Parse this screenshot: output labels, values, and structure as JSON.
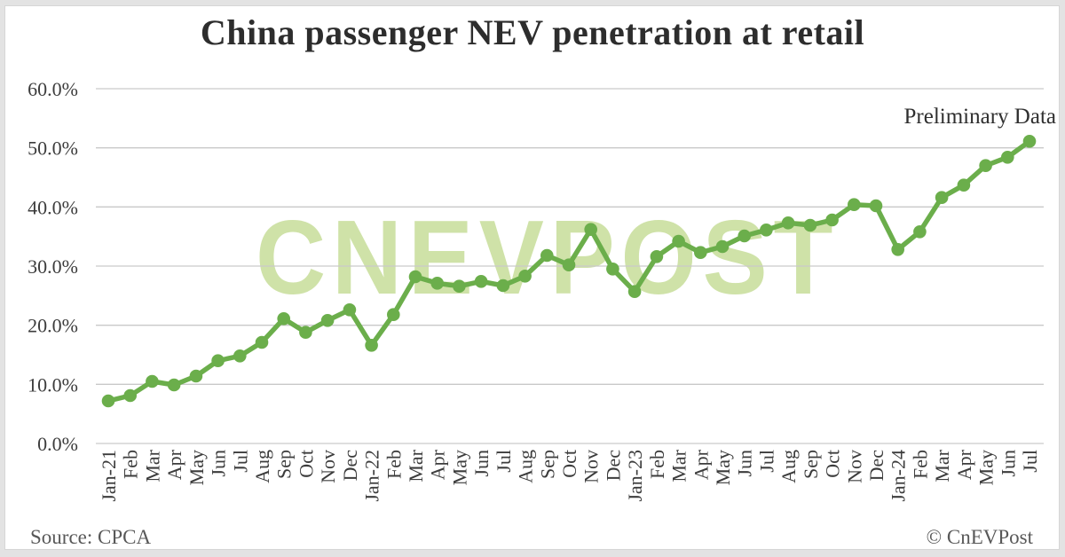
{
  "title": "China passenger NEV penetration at retail",
  "annotation": "Preliminary Data",
  "watermark": "CNEVPOST",
  "footer": {
    "source": "Source: CPCA",
    "copyright": "© CnEVPost"
  },
  "colors": {
    "line": "#6bae4b",
    "marker": "#6bae4b",
    "grid": "#c9c9c9",
    "axis_text": "#3c3c3c",
    "watermark": "#cfe2a8",
    "title_text": "#2d2d2d",
    "footer_text": "#585858",
    "card_bg": "#ffffff",
    "page_bg": "#e3e3e3"
  },
  "chart_data": {
    "type": "line",
    "title": "China passenger NEV penetration at retail",
    "xlabel": "",
    "ylabel": "",
    "ylim": [
      0,
      60
    ],
    "yticks": [
      0,
      10,
      20,
      30,
      40,
      50,
      60
    ],
    "ytick_labels": [
      "0.0%",
      "10.0%",
      "20.0%",
      "30.0%",
      "40.0%",
      "50.0%",
      "60.0%"
    ],
    "grid": "horizontal",
    "legend": "none",
    "categories": [
      "Jan-21",
      "Feb",
      "Mar",
      "Apr",
      "May",
      "Jun",
      "Jul",
      "Aug",
      "Sep",
      "Oct",
      "Nov",
      "Dec",
      "Jan-22",
      "Feb",
      "Mar",
      "Apr",
      "May",
      "Jun",
      "Jul",
      "Aug",
      "Sep",
      "Oct",
      "Nov",
      "Dec",
      "Jan-23",
      "Feb",
      "Mar",
      "Apr",
      "May",
      "Jun",
      "Jul",
      "Aug",
      "Sep",
      "Oct",
      "Nov",
      "Dec",
      "Jan-24",
      "Feb",
      "Mar",
      "Apr",
      "May",
      "Jun",
      "Jul"
    ],
    "series": [
      {
        "name": "NEV penetration at retail (%)",
        "values": [
          7.2,
          8.1,
          10.5,
          9.9,
          11.4,
          14.0,
          14.8,
          17.1,
          21.1,
          18.8,
          20.8,
          22.6,
          16.6,
          21.8,
          28.2,
          27.1,
          26.6,
          27.4,
          26.7,
          28.3,
          31.8,
          30.2,
          36.2,
          29.5,
          25.7,
          31.6,
          34.2,
          32.3,
          33.3,
          35.1,
          36.1,
          37.3,
          36.9,
          37.8,
          40.4,
          40.2,
          32.8,
          35.8,
          41.6,
          43.7,
          47.0,
          48.4,
          51.1
        ]
      }
    ],
    "annotations": [
      {
        "text": "Preliminary Data",
        "target_category": "Jul-24",
        "position": "top-right"
      }
    ]
  }
}
